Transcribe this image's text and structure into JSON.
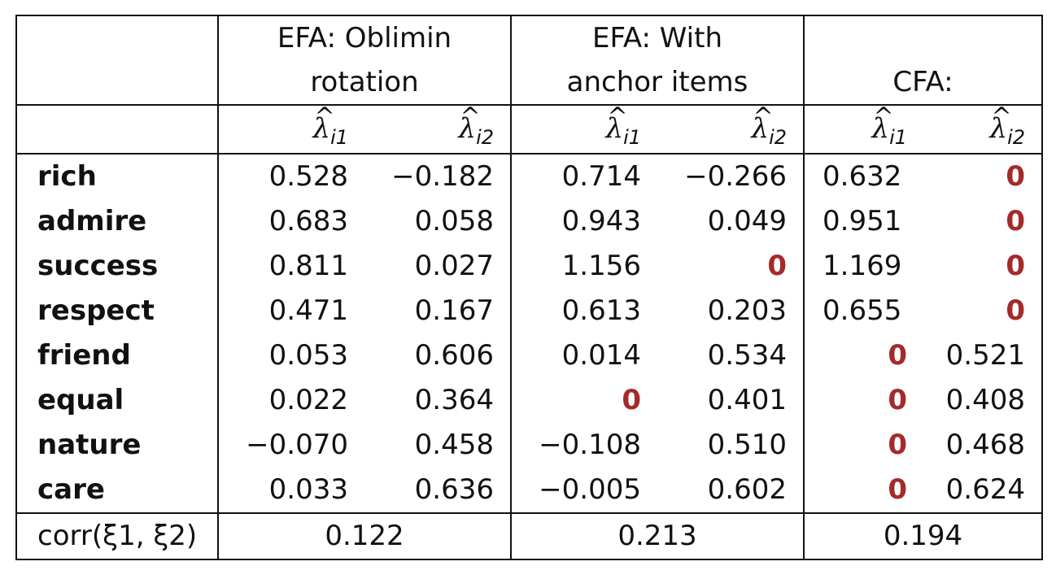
{
  "headers": {
    "efa_oblimin": [
      "EFA: Oblimin",
      "rotation"
    ],
    "efa_anchor": [
      "EFA: With",
      "anchor items"
    ],
    "cfa": [
      "",
      "CFA:"
    ]
  },
  "loading_symbol": "λ",
  "loading_hat": "^",
  "loading_subscripts": [
    "i1",
    "i2"
  ],
  "rows": [
    {
      "item": "rich",
      "values": [
        "0.528",
        "−0.182",
        "0.714",
        "−0.266",
        "0.632",
        "0"
      ]
    },
    {
      "item": "admire",
      "values": [
        "0.683",
        "0.058",
        "0.943",
        "0.049",
        "0.951",
        "0"
      ]
    },
    {
      "item": "success",
      "values": [
        "0.811",
        "0.027",
        "1.156",
        "0",
        "1.169",
        "0"
      ]
    },
    {
      "item": "respect",
      "values": [
        "0.471",
        "0.167",
        "0.613",
        "0.203",
        "0.655",
        "0"
      ]
    },
    {
      "item": "friend",
      "values": [
        "0.053",
        "0.606",
        "0.014",
        "0.534",
        "0",
        "0.521"
      ]
    },
    {
      "item": "equal",
      "values": [
        "0.022",
        "0.364",
        "0",
        "0.401",
        "0",
        "0.408"
      ]
    },
    {
      "item": "nature",
      "values": [
        "−0.070",
        "0.458",
        "−0.108",
        "0.510",
        "0",
        "0.468"
      ]
    },
    {
      "item": "care",
      "values": [
        "0.033",
        "0.636",
        "−0.005",
        "0.602",
        "0",
        "0.624"
      ]
    }
  ],
  "corr_row": {
    "label": "corr(ξ1, ξ2)",
    "values": [
      "0.122",
      "0.213",
      "0.194"
    ]
  },
  "colors": {
    "fixed_zero": "#a52a2a"
  }
}
